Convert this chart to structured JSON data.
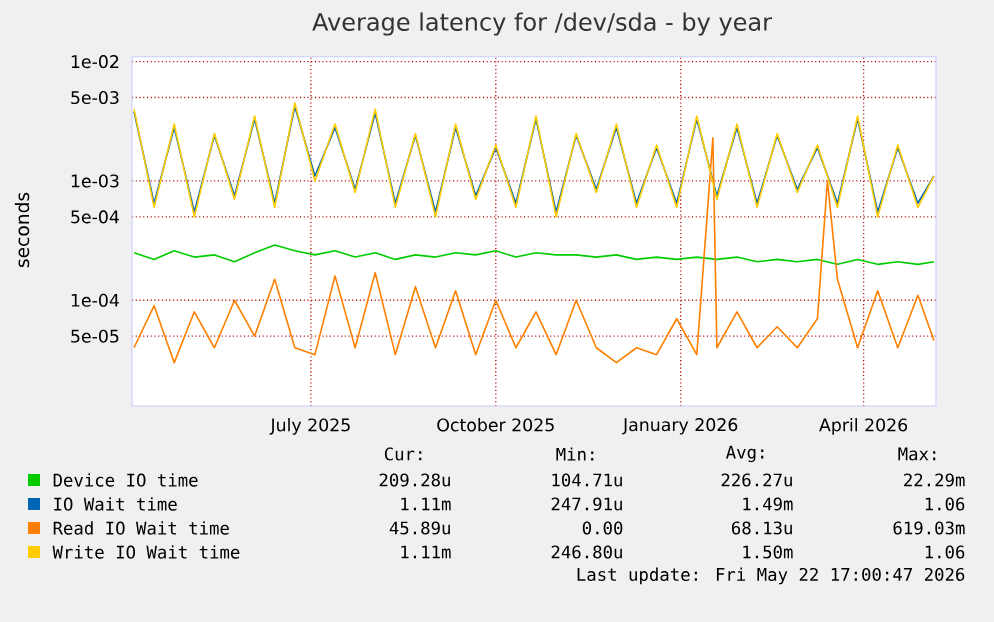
{
  "chart_data": {
    "type": "line",
    "title": "Average latency for /dev/sda - by year",
    "ylabel": "seconds",
    "log": "y",
    "grid": true,
    "legend": "bottom",
    "x": [
      "2025-04-18",
      "2025-04-28",
      "2025-05-08",
      "2025-05-18",
      "2025-05-28",
      "2025-06-07",
      "2025-06-17",
      "2025-06-27",
      "2025-07-07",
      "2025-07-17",
      "2025-07-27",
      "2025-08-06",
      "2025-08-16",
      "2025-08-26",
      "2025-09-05",
      "2025-09-15",
      "2025-09-25",
      "2025-10-05",
      "2025-10-15",
      "2025-10-25",
      "2025-11-04",
      "2025-11-14",
      "2025-11-24",
      "2025-12-04",
      "2025-12-14",
      "2025-12-24",
      "2026-01-03",
      "2026-01-13",
      "2026-01-23",
      "2026-02-02",
      "2026-02-12",
      "2026-02-22",
      "2026-03-04",
      "2026-03-14",
      "2026-03-24",
      "2026-04-03",
      "2026-04-13",
      "2026-04-23",
      "2026-05-03",
      "2026-05-13",
      "2026-05-21"
    ],
    "xlim": [
      "2025-04-17",
      "2026-05-22"
    ],
    "xticks": [
      {
        "value": "2025-07-15",
        "label": "July 2025"
      },
      {
        "value": "2025-10-15",
        "label": "October 2025"
      },
      {
        "value": "2026-01-15",
        "label": "January 2026"
      },
      {
        "value": "2026-04-16",
        "label": "April 2026"
      }
    ],
    "ylim": [
      1.3e-05,
      0.011
    ],
    "yticks": [
      {
        "value": 5e-05,
        "label": "5e-05"
      },
      {
        "value": 0.0001,
        "label": "1e-04"
      },
      {
        "value": 0.0005,
        "label": "5e-04"
      },
      {
        "value": 0.001,
        "label": "1e-03"
      },
      {
        "value": 0.005,
        "label": "5e-03"
      },
      {
        "value": 0.01,
        "label": "1e-02"
      }
    ],
    "series": [
      {
        "name": "Device IO time",
        "color": "#00cc00",
        "values": [
          0.00025,
          0.00022,
          0.00026,
          0.00023,
          0.00024,
          0.00021,
          0.00025,
          0.00029,
          0.00026,
          0.00024,
          0.00026,
          0.00023,
          0.00025,
          0.00022,
          0.00024,
          0.00023,
          0.00025,
          0.00024,
          0.00026,
          0.00023,
          0.00025,
          0.00024,
          0.00024,
          0.00023,
          0.00024,
          0.00022,
          0.00023,
          0.00022,
          0.00023,
          0.00022,
          0.00023,
          0.00021,
          0.00022,
          0.00021,
          0.00022,
          0.0002,
          0.00022,
          0.0002,
          0.00021,
          0.0002,
          0.00021
        ]
      },
      {
        "name": "IO Wait time",
        "color": "#0066b3",
        "values": [
          0.0038,
          0.00065,
          0.0028,
          0.00055,
          0.0024,
          0.00075,
          0.0033,
          0.00065,
          0.0042,
          0.0011,
          0.0028,
          0.00085,
          0.0037,
          0.00065,
          0.0024,
          0.00055,
          0.0028,
          0.00075,
          0.0019,
          0.00065,
          0.0033,
          0.00055,
          0.0024,
          0.00085,
          0.0028,
          0.00065,
          0.0019,
          0.00065,
          0.0033,
          0.00075,
          0.0028,
          0.00065,
          0.0024,
          0.00085,
          0.0019,
          0.00065,
          0.0033,
          0.00055,
          0.0019,
          0.00065,
          0.0011
        ]
      },
      {
        "name": "Read IO Wait time",
        "color": "#ff8000",
        "x": [
          "2025-04-18",
          "2025-04-28",
          "2025-05-08",
          "2025-05-18",
          "2025-05-28",
          "2025-06-07",
          "2025-06-17",
          "2025-06-27",
          "2025-07-07",
          "2025-07-17",
          "2025-07-27",
          "2025-08-06",
          "2025-08-16",
          "2025-08-26",
          "2025-09-05",
          "2025-09-15",
          "2025-09-25",
          "2025-10-05",
          "2025-10-15",
          "2025-10-25",
          "2025-11-04",
          "2025-11-14",
          "2025-11-24",
          "2025-12-04",
          "2025-12-14",
          "2025-12-24",
          "2026-01-03",
          "2026-01-13",
          "2026-01-23",
          "2026-01-31",
          "2026-02-02",
          "2026-02-12",
          "2026-02-22",
          "2026-03-04",
          "2026-03-14",
          "2026-03-24",
          "2026-03-29",
          "2026-04-03",
          "2026-04-13",
          "2026-04-23",
          "2026-05-03",
          "2026-05-13",
          "2026-05-21"
        ],
        "values": [
          4e-05,
          9e-05,
          3e-05,
          8e-05,
          4e-05,
          0.0001,
          5e-05,
          0.00015,
          4e-05,
          3.5e-05,
          0.00016,
          4e-05,
          0.00017,
          3.5e-05,
          0.00013,
          4e-05,
          0.00012,
          3.5e-05,
          0.0001,
          4e-05,
          8e-05,
          3.5e-05,
          0.0001,
          4e-05,
          3e-05,
          4e-05,
          3.5e-05,
          7e-05,
          3.5e-05,
          0.0023,
          4e-05,
          8e-05,
          4e-05,
          6e-05,
          4e-05,
          7e-05,
          0.001,
          0.00015,
          4e-05,
          0.00012,
          4e-05,
          0.00011,
          4.6e-05
        ]
      },
      {
        "name": "Write IO Wait time",
        "color": "#ffcc00",
        "values": [
          0.004,
          0.0006,
          0.003,
          0.0005,
          0.0025,
          0.0007,
          0.0035,
          0.0006,
          0.0045,
          0.001,
          0.003,
          0.0008,
          0.004,
          0.0006,
          0.0025,
          0.0005,
          0.003,
          0.0007,
          0.002,
          0.0006,
          0.0035,
          0.0005,
          0.0025,
          0.0008,
          0.003,
          0.0006,
          0.002,
          0.0006,
          0.0035,
          0.0007,
          0.003,
          0.0006,
          0.0025,
          0.0008,
          0.002,
          0.0006,
          0.0035,
          0.0005,
          0.002,
          0.0006,
          0.0011
        ]
      }
    ],
    "annotations": [
      "Cur:",
      "Min:",
      "Avg:",
      "Max:",
      "209.28u",
      "104.71u",
      "226.27u",
      "22.29m",
      "1.11m",
      "247.91u",
      "1.49m",
      "1.06",
      "45.89u",
      "0.00",
      "68.13u",
      "619.03m",
      "1.11m",
      "246.80u",
      "1.50m",
      "1.06",
      "Last update: Fri May 22 17:00:47 2026"
    ]
  }
}
